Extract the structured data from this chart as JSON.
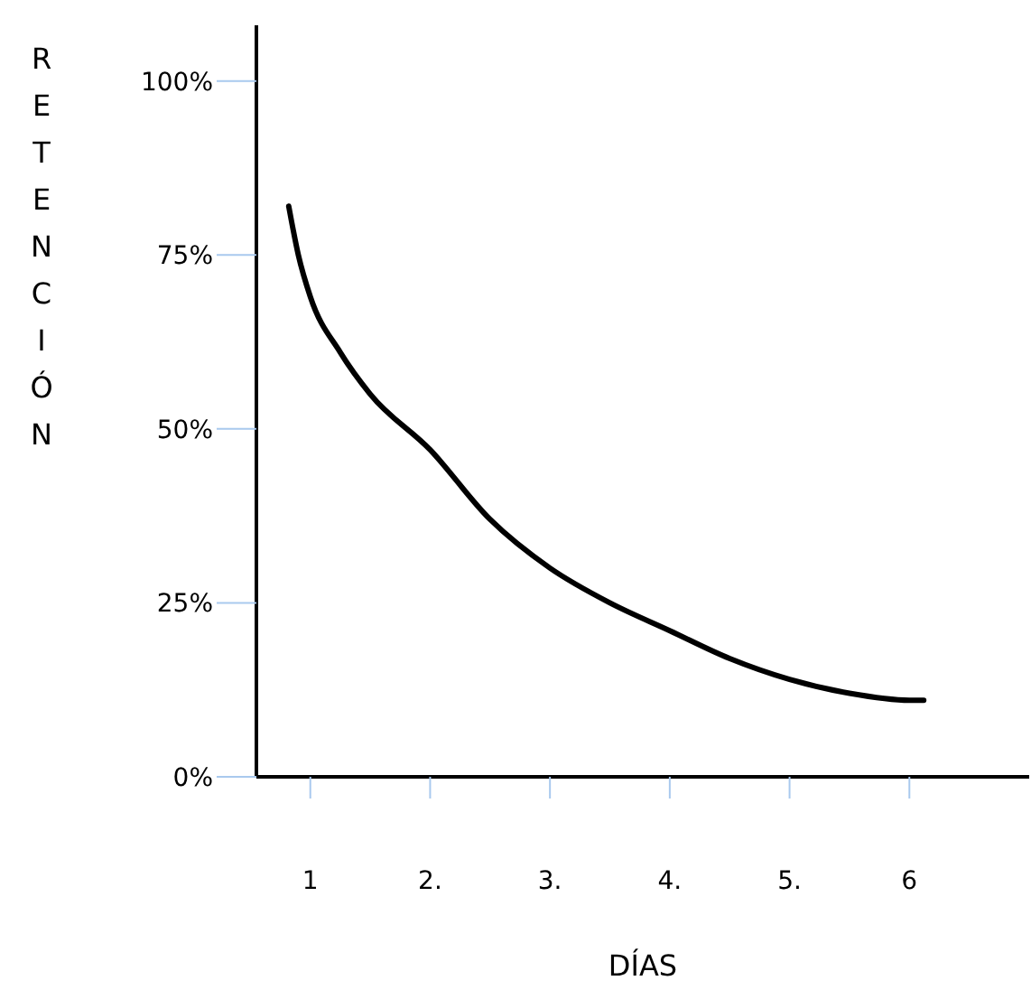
{
  "chart_data": {
    "type": "line",
    "xlabel": "DÍAS",
    "ylabel": "RETENCIÓN",
    "series": [
      {
        "color": "#000000",
        "x": [
          0.82,
          0.9,
          1,
          1.25,
          1.5,
          2,
          2.5,
          3,
          3.5,
          4,
          4.5,
          5,
          5.5,
          6,
          6.12
        ],
        "values": [
          82,
          75,
          69,
          61,
          55,
          47,
          37,
          30,
          25,
          21,
          17,
          14,
          12,
          11,
          11
        ]
      }
    ],
    "xlim": [
      0.55,
      7
    ],
    "xticks": [
      1,
      {
        "value": 2,
        "label": "2."
      },
      {
        "value": 3,
        "label": "3."
      },
      {
        "value": 4,
        "label": "4."
      },
      {
        "value": 5,
        "label": "5."
      },
      6
    ],
    "ylim": [
      0,
      108
    ],
    "yticks": [
      {
        "value": 0,
        "label": "0%"
      },
      {
        "value": 25,
        "label": "25%"
      },
      {
        "value": 50,
        "label": "50%"
      },
      {
        "value": 75,
        "label": "75%"
      },
      {
        "value": 100,
        "label": "100%"
      }
    ],
    "grid": false,
    "legend": false,
    "marker": "none",
    "line_style": "solid"
  }
}
